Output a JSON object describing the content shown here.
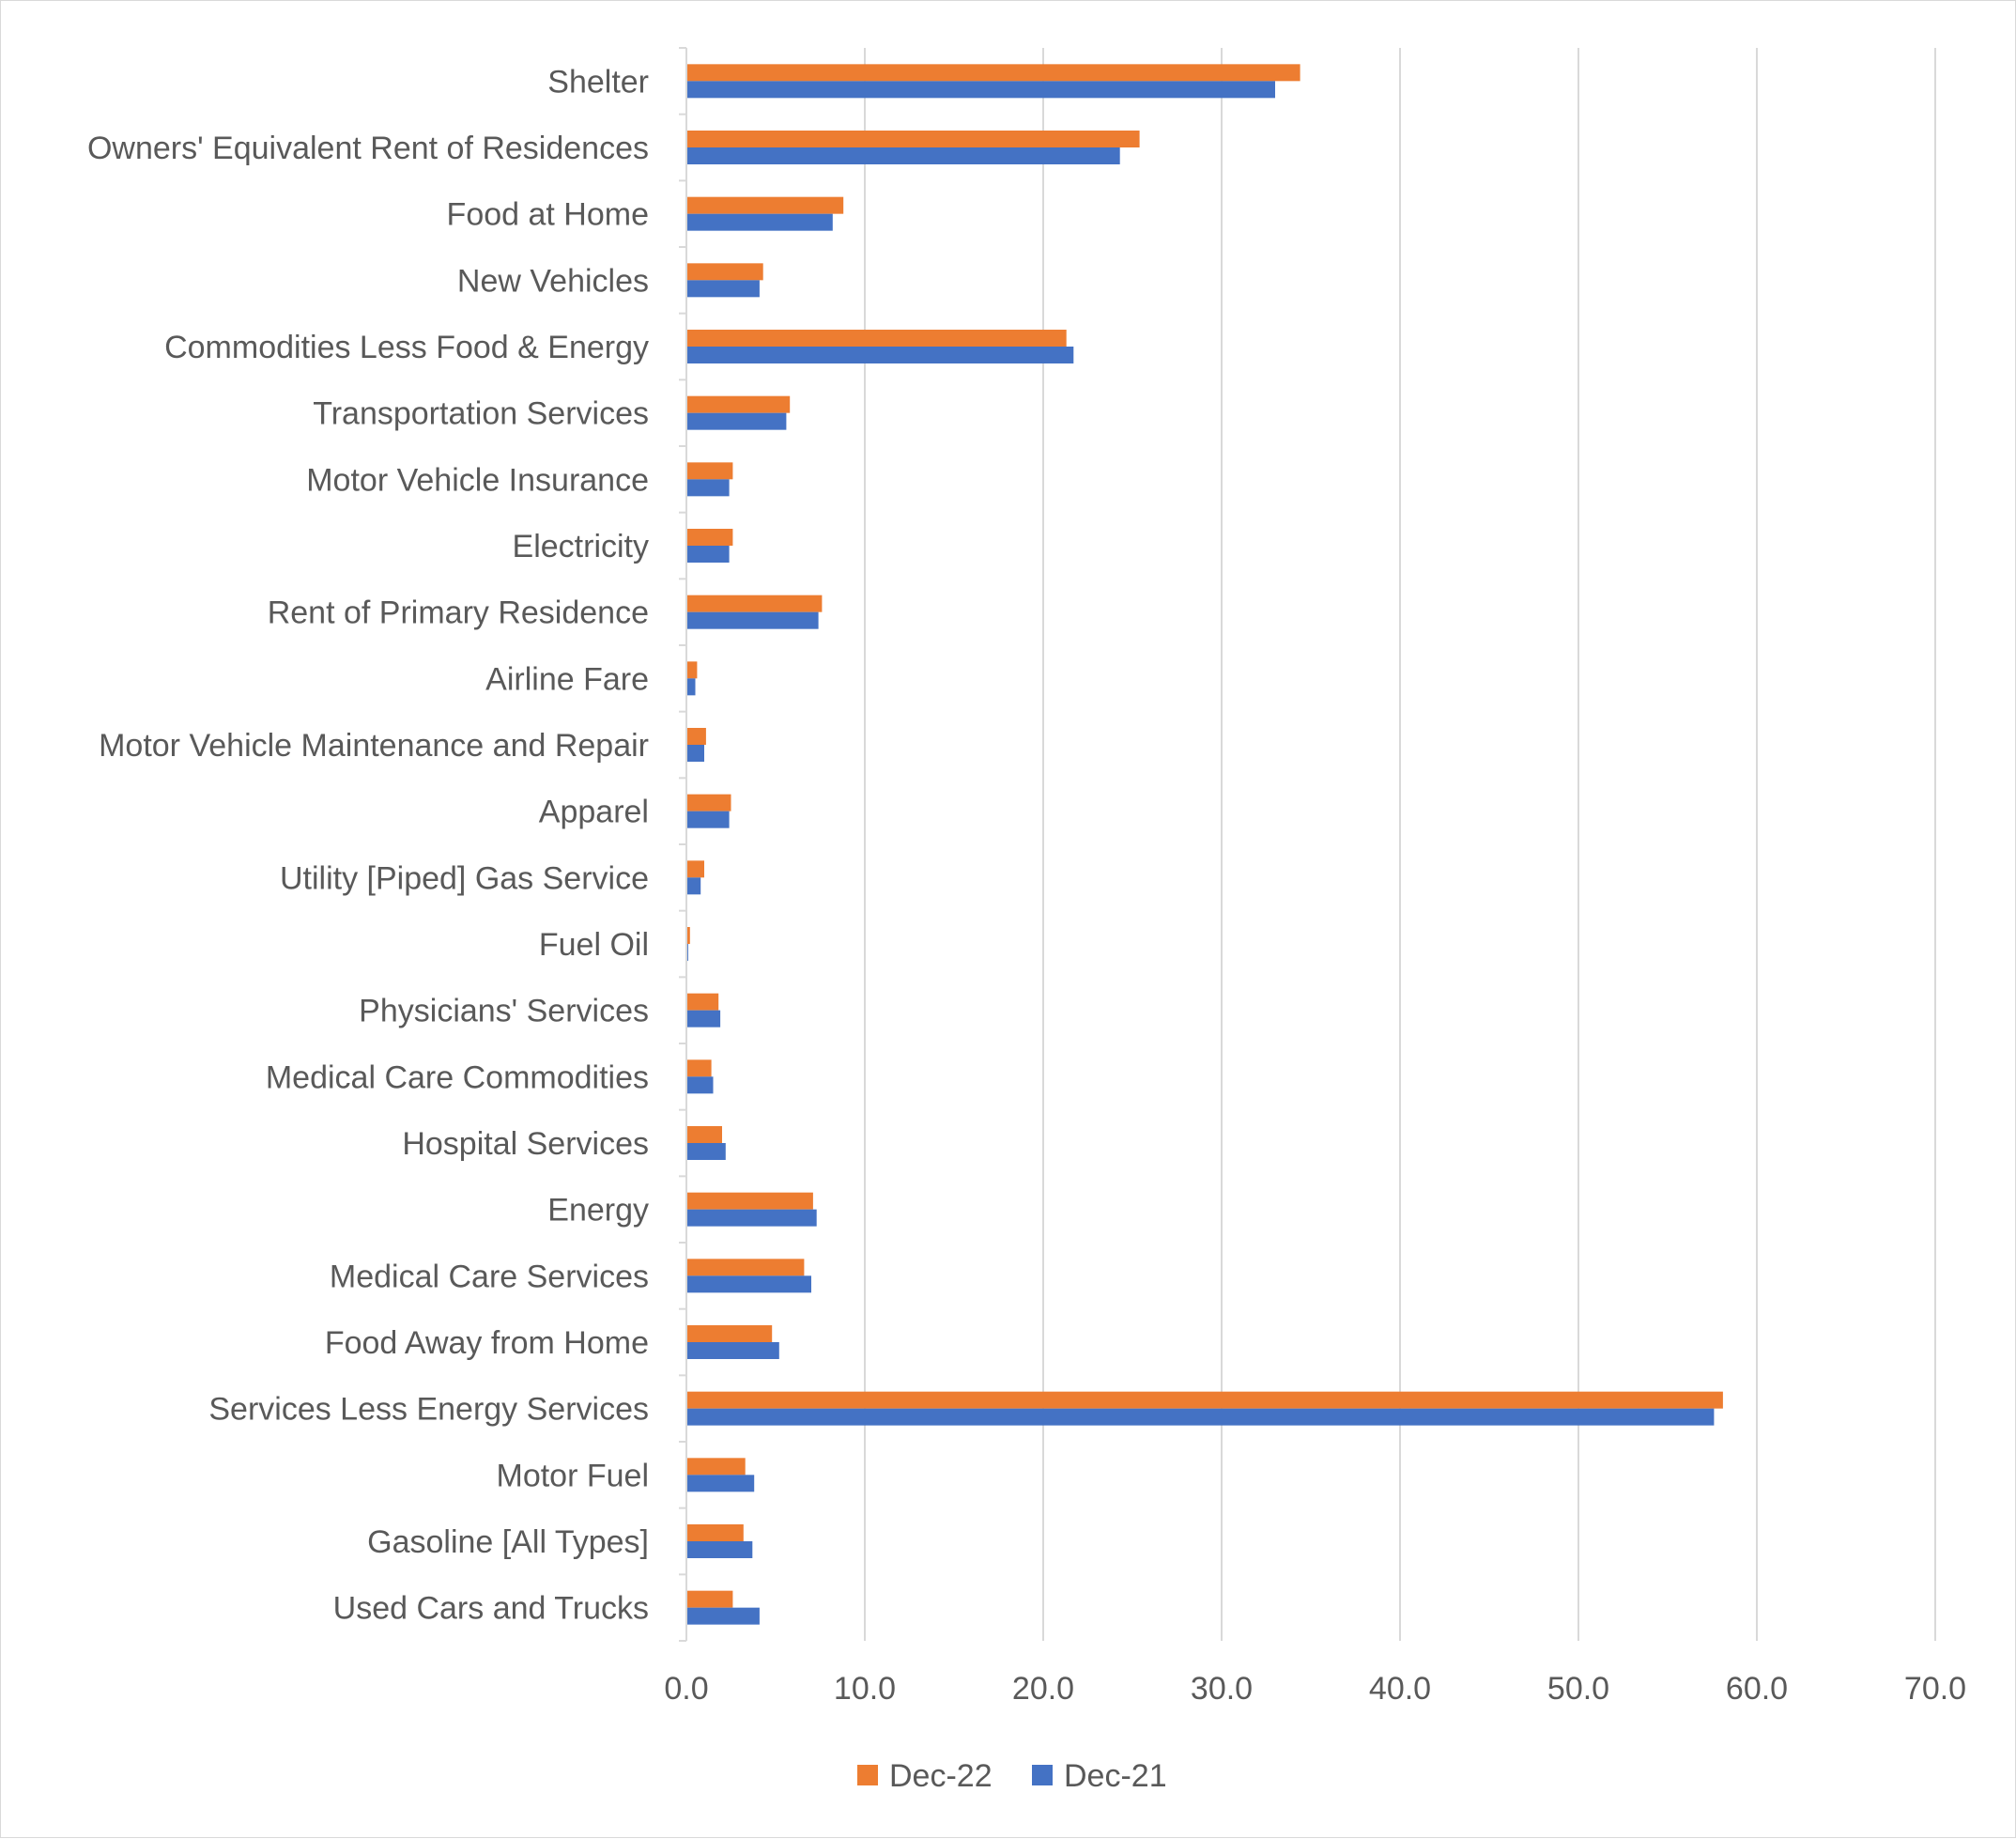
{
  "chart_data": {
    "type": "bar",
    "orientation": "horizontal",
    "title": "",
    "xlabel": "",
    "ylabel": "",
    "xlim": [
      0,
      70
    ],
    "x_ticks": [
      "0.0",
      "10.0",
      "20.0",
      "30.0",
      "40.0",
      "50.0",
      "60.0",
      "70.0"
    ],
    "grid": true,
    "legend_position": "bottom",
    "categories": [
      "Shelter",
      "Owners' Equivalent Rent of Residences",
      "Food at Home",
      "New Vehicles",
      "Commodities Less Food & Energy",
      "Transportation Services",
      "Motor Vehicle Insurance",
      "Electricity",
      "Rent of Primary Residence",
      "Airline Fare",
      "Motor Vehicle Maintenance and Repair",
      "Apparel",
      "Utility [Piped] Gas Service",
      "Fuel Oil",
      "Physicians' Services",
      "Medical Care Commodities",
      "Hospital Services",
      "Energy",
      "Medical Care Services",
      "Food Away from Home",
      "Services Less Energy Services",
      "Motor Fuel",
      "Gasoline [All Types]",
      "Used Cars and Trucks"
    ],
    "series": [
      {
        "name": "Dec-22",
        "color": "#ED7D31",
        "values": [
          34.4,
          25.4,
          8.8,
          4.3,
          21.3,
          5.8,
          2.6,
          2.6,
          7.6,
          0.6,
          1.1,
          2.5,
          1.0,
          0.2,
          1.8,
          1.4,
          2.0,
          7.1,
          6.6,
          4.8,
          58.1,
          3.3,
          3.2,
          2.6
        ]
      },
      {
        "name": "Dec-21",
        "color": "#4472C4",
        "values": [
          33.0,
          24.3,
          8.2,
          4.1,
          21.7,
          5.6,
          2.4,
          2.4,
          7.4,
          0.5,
          1.0,
          2.4,
          0.8,
          0.1,
          1.9,
          1.5,
          2.2,
          7.3,
          7.0,
          5.2,
          57.6,
          3.8,
          3.7,
          4.1
        ]
      }
    ]
  }
}
